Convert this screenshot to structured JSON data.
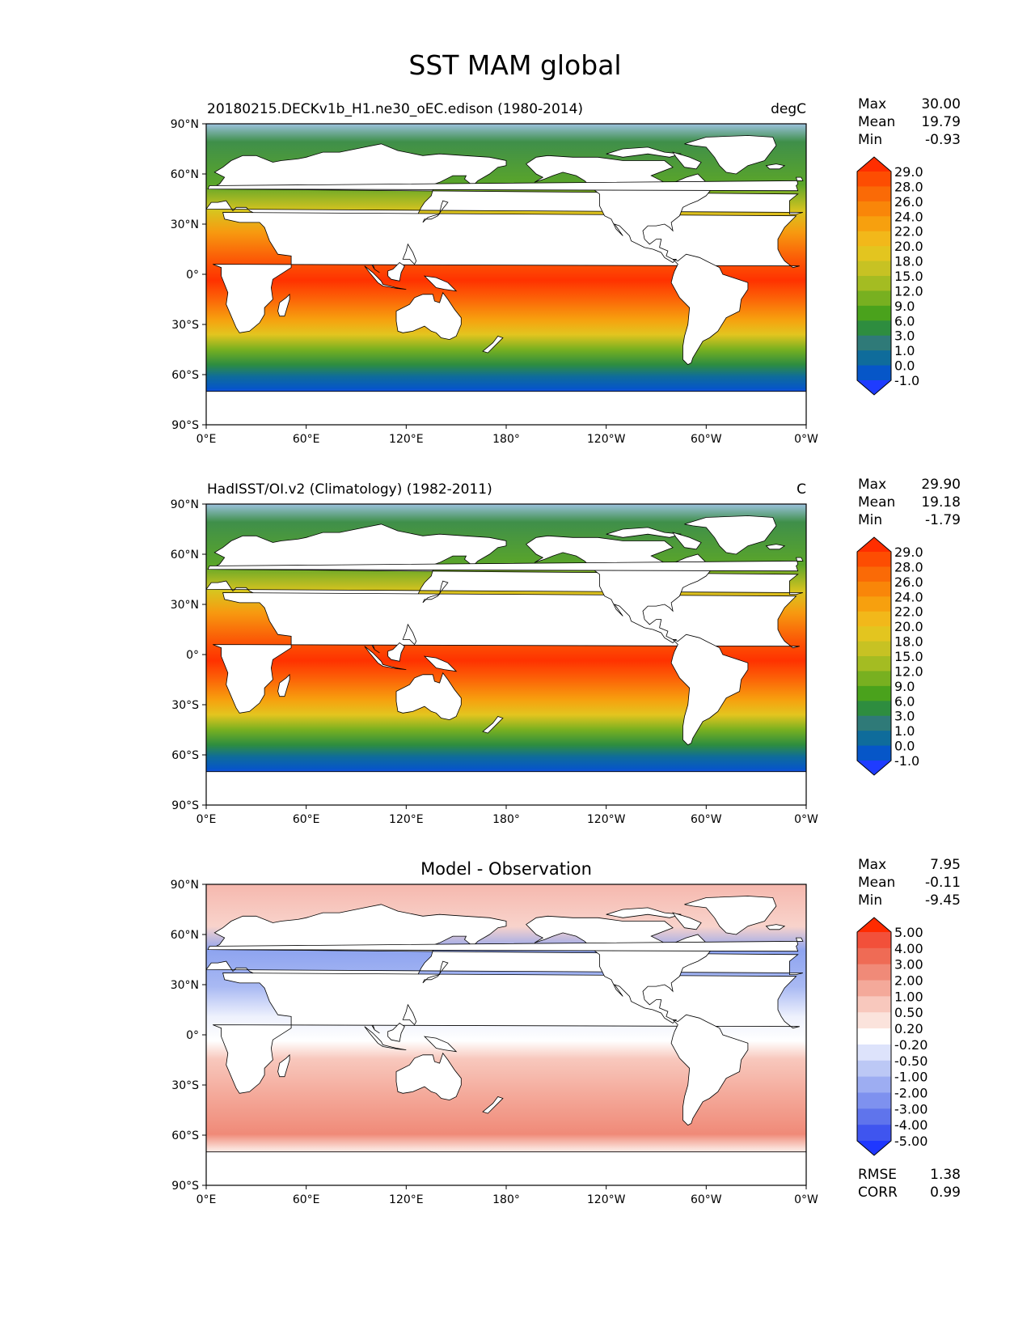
{
  "figure_title": "SST MAM global",
  "axes": {
    "lat_ticks": [
      "90°N",
      "60°N",
      "30°N",
      "0°",
      "30°S",
      "60°S",
      "90°S"
    ],
    "lon_ticks": [
      "0°E",
      "60°E",
      "120°E",
      "180°",
      "120°W",
      "60°W",
      "0°W"
    ]
  },
  "stats_labels": {
    "max": "Max",
    "mean": "Mean",
    "min": "Min",
    "rmse": "RMSE",
    "corr": "CORR"
  },
  "chart_data": [
    {
      "type": "heatmap",
      "title_left": "20180215.DECKv1b_H1.ne30_oEC.edison (1980-2014)",
      "title_right": "degC",
      "stats": {
        "max": "30.00",
        "mean": "19.79",
        "min": "-0.93"
      },
      "colorbar_labels": [
        "29.0",
        "28.0",
        "26.0",
        "24.0",
        "22.0",
        "20.0",
        "18.0",
        "15.0",
        "12.0",
        "9.0",
        "6.0",
        "3.0",
        "1.0",
        "0.0",
        "-1.0"
      ],
      "colorbar_colors": [
        "#ff2e00",
        "#fd4d02",
        "#fa6a06",
        "#f98609",
        "#f7a00e",
        "#f2b81a",
        "#e3c51f",
        "#c7c223",
        "#a4bc22",
        "#78b020",
        "#4aa21c",
        "#2e8d3f",
        "#2f7a78",
        "#0f6c9b",
        "#0656c8",
        "#1f3cff"
      ],
      "xlim": [
        0,
        360
      ],
      "ylim": [
        -90,
        90
      ]
    },
    {
      "type": "heatmap",
      "title_left": "HadISST/OI.v2 (Climatology) (1982-2011)",
      "title_right": "C",
      "stats": {
        "max": "29.90",
        "mean": "19.18",
        "min": "-1.79"
      },
      "colorbar_labels": [
        "29.0",
        "28.0",
        "26.0",
        "24.0",
        "22.0",
        "20.0",
        "18.0",
        "15.0",
        "12.0",
        "9.0",
        "6.0",
        "3.0",
        "1.0",
        "0.0",
        "-1.0"
      ],
      "colorbar_colors": [
        "#ff2e00",
        "#fd4d02",
        "#fa6a06",
        "#f98609",
        "#f7a00e",
        "#f2b81a",
        "#e3c51f",
        "#c7c223",
        "#a4bc22",
        "#78b020",
        "#4aa21c",
        "#2e8d3f",
        "#2f7a78",
        "#0f6c9b",
        "#0656c8",
        "#1f3cff"
      ],
      "xlim": [
        0,
        360
      ],
      "ylim": [
        -90,
        90
      ]
    },
    {
      "type": "heatmap",
      "title_center": "Model - Observation",
      "stats": {
        "max": "7.95",
        "mean": "-0.11",
        "min": "-9.45"
      },
      "metrics": {
        "rmse": "1.38",
        "corr": "0.99"
      },
      "colorbar_labels": [
        "5.00",
        "4.00",
        "3.00",
        "2.00",
        "1.00",
        "0.50",
        "0.20",
        "-0.20",
        "-0.50",
        "-1.00",
        "-2.00",
        "-3.00",
        "-4.00",
        "-5.00"
      ],
      "colorbar_colors": [
        "#ff2b00",
        "#f2503a",
        "#ef6b55",
        "#f08a78",
        "#f4a99a",
        "#f8c8bd",
        "#fbe3dc",
        "#ffffff",
        "#dde3fb",
        "#bcc8f5",
        "#9dadf2",
        "#7e91ef",
        "#5f74ec",
        "#3f55ef",
        "#1f37ff"
      ],
      "xlim": [
        0,
        360
      ],
      "ylim": [
        -90,
        90
      ]
    }
  ]
}
